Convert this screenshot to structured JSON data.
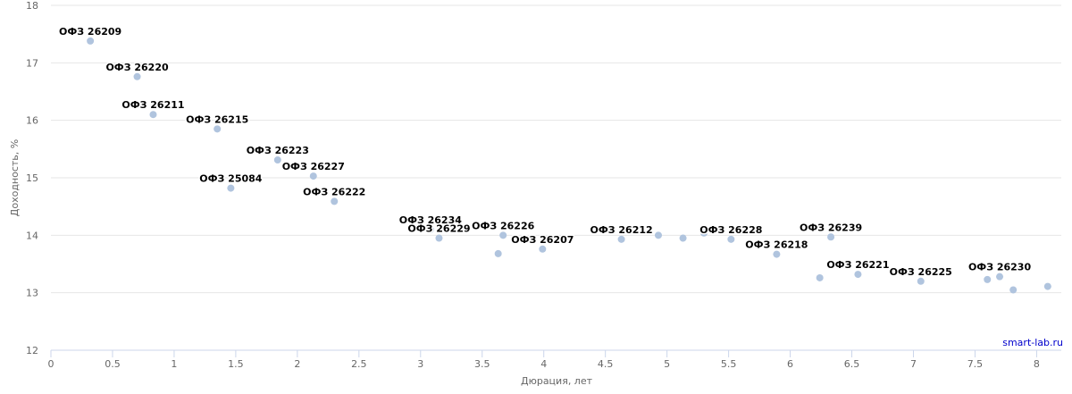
{
  "chart_data": {
    "type": "scatter",
    "xlabel": "Дюрация, лет",
    "ylabel": "Доходность, %",
    "xlim": [
      0,
      8.2
    ],
    "ylim": [
      12,
      18
    ],
    "x_ticks": [
      0,
      0.5,
      1,
      1.5,
      2,
      2.5,
      3,
      3.5,
      4,
      4.5,
      5,
      5.5,
      6,
      6.5,
      7,
      7.5,
      8
    ],
    "y_ticks": [
      12,
      13,
      14,
      15,
      16,
      17,
      18
    ],
    "grid": "horizontal",
    "point_color": "#b0c4de",
    "points": [
      {
        "x": 0.32,
        "y": 17.38,
        "label": "ОФЗ 26209"
      },
      {
        "x": 0.7,
        "y": 16.76,
        "label": "ОФЗ 26220"
      },
      {
        "x": 0.83,
        "y": 16.1,
        "label": "ОФЗ 26211"
      },
      {
        "x": 1.35,
        "y": 15.85,
        "label": "ОФЗ 26215"
      },
      {
        "x": 1.46,
        "y": 14.82,
        "label": "ОФЗ 25084"
      },
      {
        "x": 1.84,
        "y": 15.31,
        "label": "ОФЗ 26223"
      },
      {
        "x": 2.13,
        "y": 15.03,
        "label": "ОФЗ 26227"
      },
      {
        "x": 2.3,
        "y": 14.59,
        "label": "ОФЗ 26222"
      },
      {
        "x": 3.08,
        "y": 14.1,
        "label": "ОФЗ 26234"
      },
      {
        "x": 3.15,
        "y": 13.95,
        "label": "ОФЗ 26229"
      },
      {
        "x": 3.63,
        "y": 13.68,
        "label": ""
      },
      {
        "x": 3.67,
        "y": 14.0,
        "label": "ОФЗ 26226"
      },
      {
        "x": 3.99,
        "y": 13.76,
        "label": "ОФЗ 26207"
      },
      {
        "x": 4.63,
        "y": 13.93,
        "label": "ОФЗ 26212"
      },
      {
        "x": 4.93,
        "y": 14.0,
        "label": ""
      },
      {
        "x": 5.13,
        "y": 13.95,
        "label": ""
      },
      {
        "x": 5.3,
        "y": 14.04,
        "label": ""
      },
      {
        "x": 5.52,
        "y": 13.93,
        "label": "ОФЗ 26228"
      },
      {
        "x": 5.89,
        "y": 13.67,
        "label": "ОФЗ 26218"
      },
      {
        "x": 6.24,
        "y": 13.26,
        "label": ""
      },
      {
        "x": 6.33,
        "y": 13.97,
        "label": "ОФЗ 26239"
      },
      {
        "x": 6.55,
        "y": 13.32,
        "label": "ОФЗ 26221"
      },
      {
        "x": 7.06,
        "y": 13.2,
        "label": "ОФЗ 26225"
      },
      {
        "x": 7.6,
        "y": 13.23,
        "label": ""
      },
      {
        "x": 7.7,
        "y": 13.28,
        "label": "ОФЗ 26230"
      },
      {
        "x": 7.81,
        "y": 13.05,
        "label": ""
      },
      {
        "x": 8.09,
        "y": 13.11,
        "label": ""
      }
    ]
  },
  "credit": "smart-lab.ru"
}
